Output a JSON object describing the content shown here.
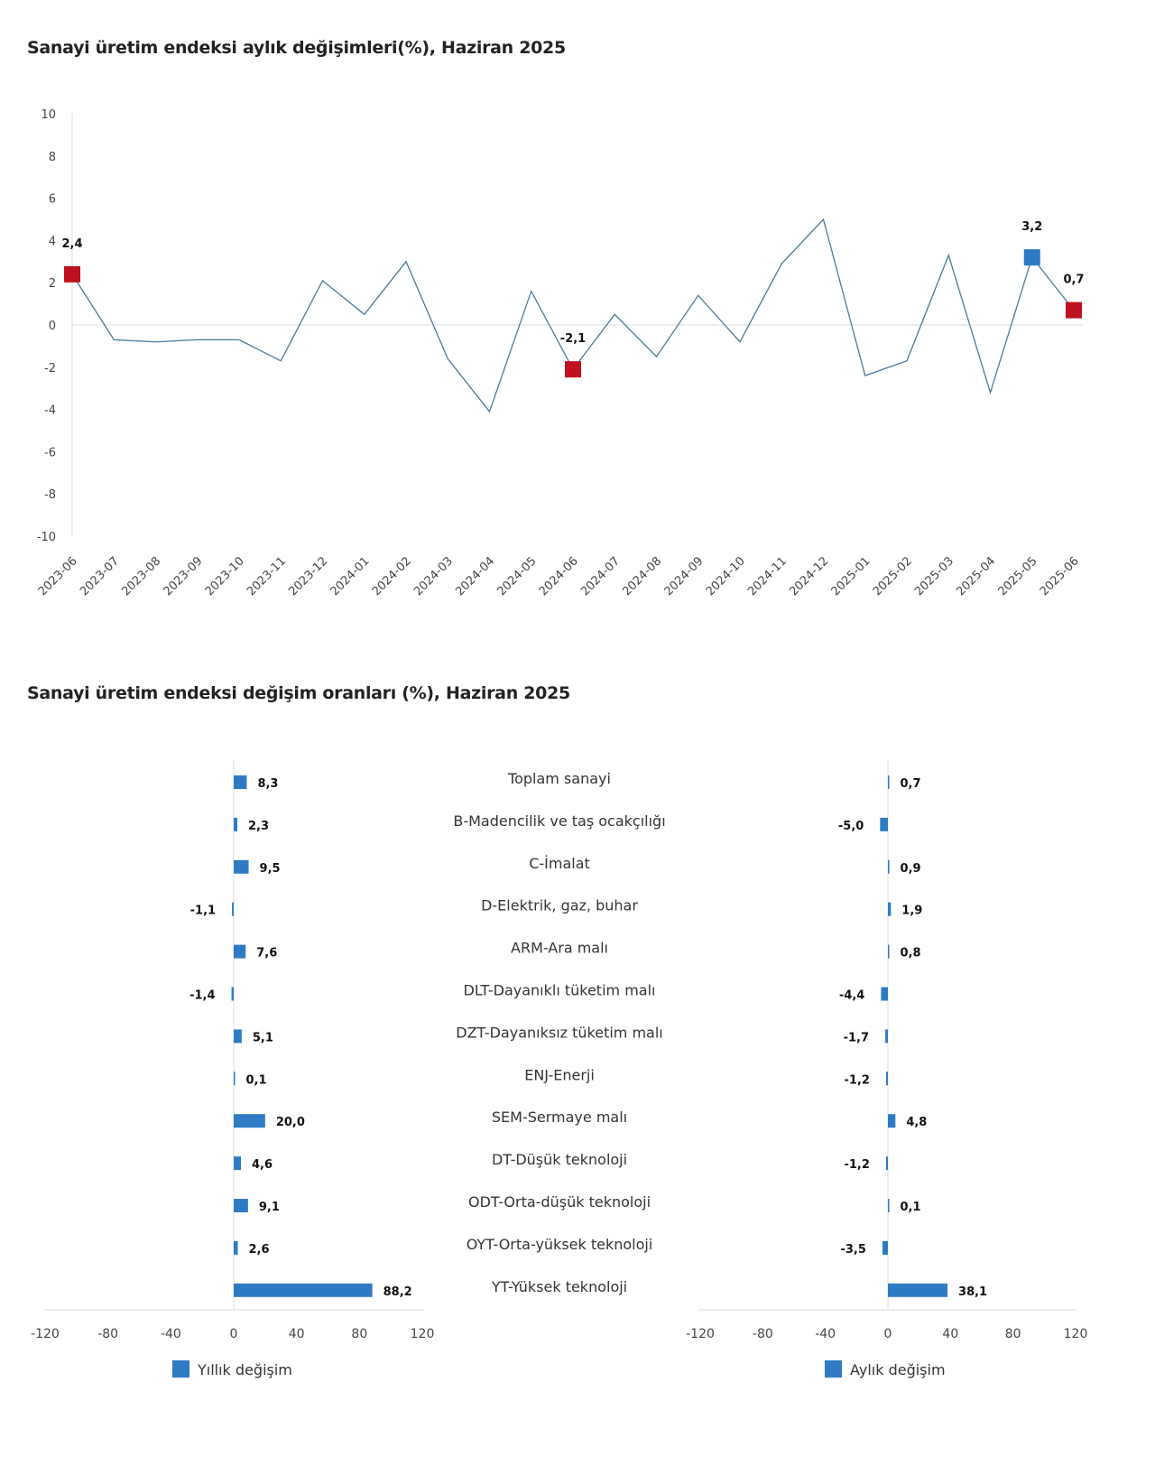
{
  "chart_data": [
    {
      "type": "line",
      "title": "Sanayi üretim endeksi aylık değişimleri(%), Haziran 2025",
      "x": [
        "2023-06",
        "2023-07",
        "2023-08",
        "2023-09",
        "2023-10",
        "2023-11",
        "2023-12",
        "2024-01",
        "2024-02",
        "2024-03",
        "2024-04",
        "2024-05",
        "2024-06",
        "2024-07",
        "2024-08",
        "2024-09",
        "2024-10",
        "2024-11",
        "2024-12",
        "2025-01",
        "2025-02",
        "2025-03",
        "2025-04",
        "2025-05",
        "2025-06"
      ],
      "values": [
        2.4,
        -0.7,
        -0.8,
        -0.7,
        -0.7,
        -1.7,
        2.1,
        0.5,
        3.0,
        -1.6,
        -4.1,
        1.6,
        -2.1,
        0.5,
        -1.5,
        1.4,
        -0.8,
        2.9,
        5.0,
        -2.4,
        -1.7,
        3.3,
        -3.2,
        3.2,
        0.7
      ],
      "ylim": [
        -10,
        10
      ],
      "yticks": [
        "10",
        "8",
        "6",
        "4",
        "2",
        "0",
        "-2",
        "-4",
        "-6",
        "-8",
        "-10"
      ],
      "highlighted_points": [
        {
          "x": "2023-06",
          "label": "2,4",
          "color": "#c0111f"
        },
        {
          "x": "2024-06",
          "label": "-2,1",
          "color": "#c0111f"
        },
        {
          "x": "2025-05",
          "label": "3,2",
          "color": "#2e7bc4"
        },
        {
          "x": "2025-06",
          "label": "0,7",
          "color": "#c0111f"
        }
      ],
      "line_color": "#4a7a99",
      "grid": false
    },
    {
      "type": "bar",
      "orientation": "horizontal",
      "title": "Sanayi üretim endeksi değişim oranları (%), Haziran 2025",
      "categories": [
        "Toplam sanayi",
        "B-Madencilik ve taş ocakçılığı",
        "C-İmalat",
        "D-Elektrik, gaz, buhar",
        "ARM-Ara malı",
        "DLT-Dayanıklı tüketim malı",
        "DZT-Dayanıksız tüketim malı",
        "ENJ-Enerji",
        "SEM-Sermaye malı",
        "DT-Düşük teknoloji",
        "ODT-Orta-düşük teknoloji",
        "OYT-Orta-yüksek teknoloji",
        "YT-Yüksek teknoloji"
      ],
      "series": [
        {
          "name": "Yıllık değişim",
          "values": [
            8.3,
            2.3,
            9.5,
            -1.1,
            7.6,
            -1.4,
            5.1,
            0.1,
            20.0,
            4.6,
            9.1,
            2.6,
            88.2
          ],
          "labels": [
            "8,3",
            "2,3",
            "9,5",
            "-1,1",
            "7,6",
            "-1,4",
            "5,1",
            "0,1",
            "20,0",
            "4,6",
            "9,1",
            "2,6",
            "88,2"
          ]
        },
        {
          "name": "Aylık değişim",
          "values": [
            0.7,
            -5.0,
            0.9,
            1.9,
            0.8,
            -4.4,
            -1.7,
            -1.2,
            4.8,
            -1.2,
            0.1,
            -3.5,
            38.1
          ],
          "labels": [
            "0,7",
            "-5,0",
            "0,9",
            "1,9",
            "0,8",
            "-4,4",
            "-1,7",
            "-1,2",
            "4,8",
            "-1,2",
            "0,1",
            "-3,5",
            "38,1"
          ]
        }
      ],
      "xlim": [
        -120,
        120
      ],
      "xticks": [
        "-120",
        "-80",
        "-40",
        "0",
        "40",
        "80",
        "120"
      ],
      "bar_color": "#2e7bc4",
      "legend": "bottom"
    }
  ]
}
